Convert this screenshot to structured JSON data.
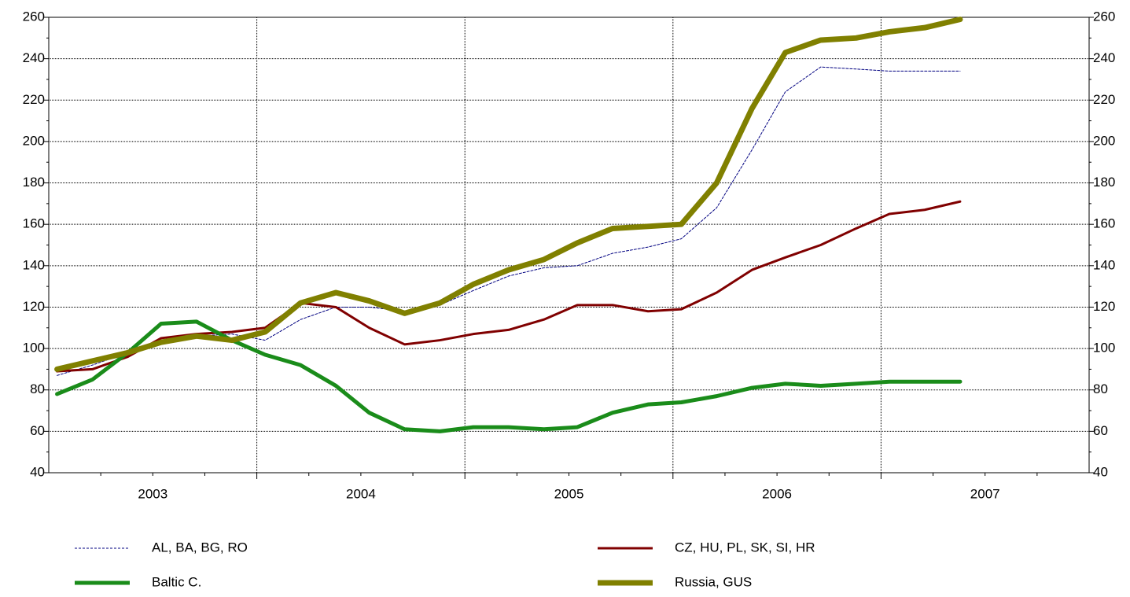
{
  "chart_data": {
    "type": "line",
    "x": [
      2003.04,
      2003.21,
      2003.38,
      2003.54,
      2003.71,
      2003.88,
      2004.04,
      2004.21,
      2004.38,
      2004.54,
      2004.71,
      2004.88,
      2005.04,
      2005.21,
      2005.38,
      2005.54,
      2005.71,
      2005.88,
      2006.04,
      2006.21,
      2006.38,
      2006.54,
      2006.71,
      2006.88,
      2007.04,
      2007.21,
      2007.38
    ],
    "series": [
      {
        "name": "AL, BA, BG, RO",
        "color": "#000080",
        "width": 1,
        "dash": "3,2",
        "values": [
          87,
          92,
          98,
          104,
          106,
          107,
          104,
          114,
          120,
          120,
          118,
          121,
          128,
          135,
          139,
          140,
          146,
          149,
          153,
          168,
          196,
          224,
          236,
          235,
          234,
          234,
          234
        ]
      },
      {
        "name": "CZ, HU, PL, SK, SI, HR",
        "color": "#800000",
        "width": 3,
        "dash": "none",
        "values": [
          89,
          90,
          96,
          105,
          107,
          108,
          110,
          122,
          120,
          110,
          102,
          104,
          107,
          109,
          114,
          121,
          121,
          118,
          119,
          127,
          138,
          144,
          150,
          158,
          165,
          167,
          171
        ]
      },
      {
        "name": "Baltic C.",
        "color": "#1a8c1a",
        "width": 5,
        "dash": "none",
        "values": [
          78,
          85,
          98,
          112,
          113,
          104,
          97,
          92,
          82,
          69,
          61,
          60,
          62,
          62,
          61,
          62,
          69,
          73,
          74,
          77,
          81,
          83,
          82,
          83,
          84,
          84,
          84
        ]
      },
      {
        "name": "Russia, GUS",
        "color": "#808000",
        "width": 7,
        "dash": "none",
        "values": [
          90,
          94,
          98,
          103,
          106,
          104,
          108,
          122,
          127,
          123,
          117,
          122,
          131,
          138,
          143,
          151,
          158,
          159,
          160,
          180,
          216,
          243,
          249,
          250,
          253,
          255,
          259
        ]
      }
    ],
    "xlim": [
      2003,
      2008
    ],
    "xticks": [
      {
        "value": 2003.5,
        "label": "2003"
      },
      {
        "value": 2004.5,
        "label": "2004"
      },
      {
        "value": 2005.5,
        "label": "2005"
      },
      {
        "value": 2006.5,
        "label": "2006"
      },
      {
        "value": 2007.5,
        "label": "2007"
      }
    ],
    "xgrid": [
      2004,
      2005,
      2006,
      2007
    ],
    "ylim": [
      40,
      260
    ],
    "yticks": [
      40,
      60,
      80,
      100,
      120,
      140,
      160,
      180,
      200,
      220,
      240,
      260
    ],
    "y2lim": [
      40,
      260
    ],
    "y2ticks": [
      40,
      60,
      80,
      100,
      120,
      140,
      160,
      180,
      200,
      220,
      240,
      260
    ],
    "grid": true,
    "legend": "bottom"
  }
}
